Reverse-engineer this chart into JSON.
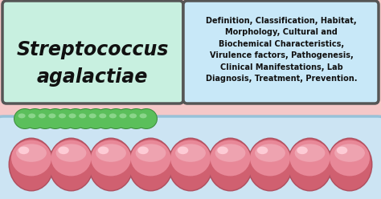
{
  "bg_color": "#f5c8c8",
  "left_box_color": "#c8f0e0",
  "left_box_border": "#555555",
  "left_title_line1": "Streptococcus",
  "left_title_line2": "agalactiae",
  "right_box_color": "#c8e8f8",
  "right_box_border": "#555555",
  "right_text": "Definition, Classification, Habitat,\nMorphology, Cultural and\nBiochemical Characteristics,\nVirulence factors, Pathogenesis,\nClinical Manifestations, Lab\nDiagnosis, Treatment, Prevention.",
  "small_cocci_color": "#5bbf5b",
  "small_cocci_edge": "#3a8a3a",
  "small_cocci_count": 13,
  "large_cocci_color_top": "#f0a0b0",
  "large_cocci_color_bot": "#c86878",
  "large_cocci_edge": "#b05060",
  "large_cocci_count": 9,
  "capsule_color": "#c8e8f8",
  "capsule_edge": "#90c0d8"
}
